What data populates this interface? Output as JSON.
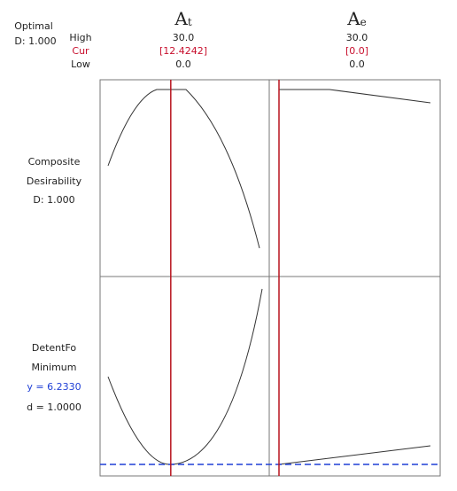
{
  "optimal": {
    "title": "Optimal",
    "d": "D: 1.000"
  },
  "row_labels": {
    "high": "High",
    "cur": "Cur",
    "low": "Low"
  },
  "factors": [
    {
      "name": "A",
      "subscript": "t",
      "high": "30.0",
      "cur": "[12.4242]",
      "low": "0.0",
      "high_value": 30,
      "cur_value": 12.4242,
      "low_value": 0
    },
    {
      "name": "A",
      "subscript": "e",
      "high": "30.0",
      "cur": "[0.0]",
      "low": "0.0",
      "high_value": 30,
      "cur_value": 0,
      "low_value": 0
    }
  ],
  "responses": [
    {
      "lines": [
        "Composite",
        "Desirability",
        "D: 1.000"
      ]
    },
    {
      "lines": [
        "DetentFo",
        "Minimum"
      ],
      "y": "y = 6.2330",
      "d": "d = 1.0000"
    }
  ]
}
